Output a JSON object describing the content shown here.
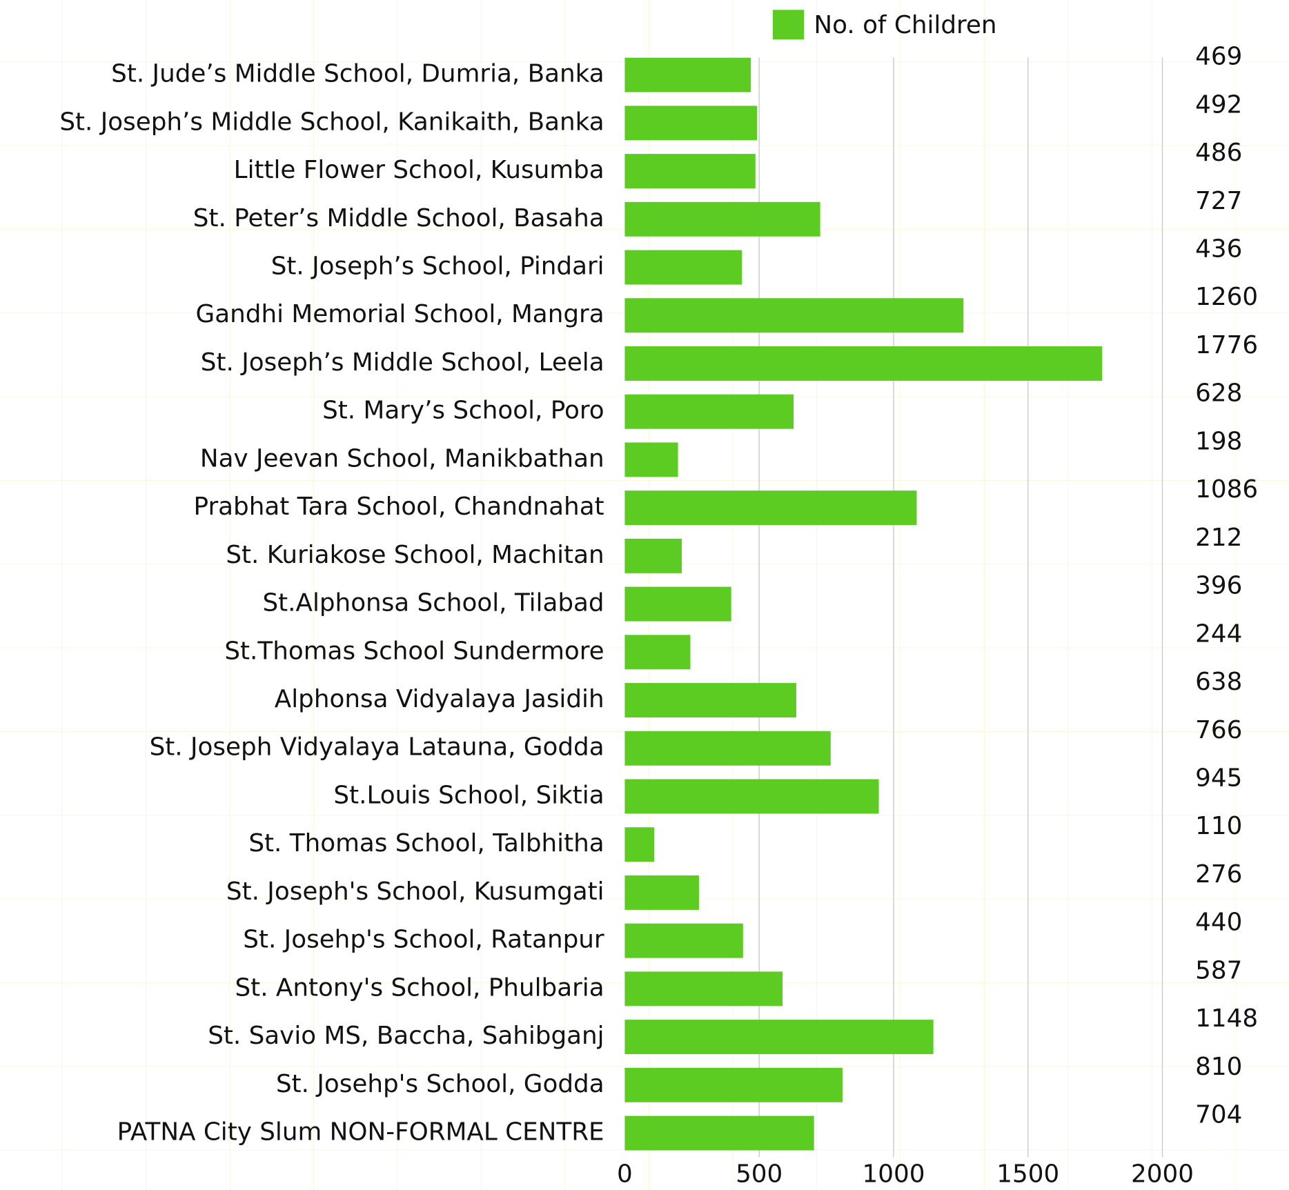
{
  "chart_data": {
    "type": "bar",
    "orientation": "horizontal",
    "legend": "No. of Children",
    "categories": [
      "St. Jude’s Middle School, Dumria, Banka",
      "St. Joseph’s Middle School, Kanikaith, Banka",
      "Little Flower School, Kusumba",
      "St. Peter’s Middle School, Basaha",
      "St. Joseph’s School, Pindari",
      "Gandhi Memorial School, Mangra",
      "St. Joseph’s Middle School, Leela",
      "St. Mary’s School, Poro",
      "Nav Jeevan School, Manikbathan",
      "Prabhat Tara School, Chandnahat",
      "St. Kuriakose School, Machitan",
      "St.Alphonsa School, Tilabad",
      "St.Thomas School Sundermore",
      "Alphonsa Vidyalaya Jasidih",
      "St. Joseph Vidyalaya Latauna, Godda",
      "St.Louis School, Siktia",
      "St. Thomas School, Talbhitha",
      "St. Joseph's School, Kusumgati",
      "St. Josehp's School, Ratanpur",
      "St. Antony's School, Phulbaria",
      "St. Savio MS, Baccha, Sahibganj",
      "St. Josehp's School, Godda",
      "PATNA City Slum NON-FORMAL CENTRE"
    ],
    "values": [
      469,
      492,
      486,
      727,
      436,
      1260,
      1776,
      628,
      198,
      1086,
      212,
      396,
      244,
      638,
      766,
      945,
      110,
      276,
      440,
      587,
      1148,
      810,
      704
    ],
    "color": "#5ccc22",
    "xlim": [
      0,
      2000
    ],
    "xticks": [
      0,
      500,
      1000,
      1500,
      2000
    ],
    "grid": true
  }
}
